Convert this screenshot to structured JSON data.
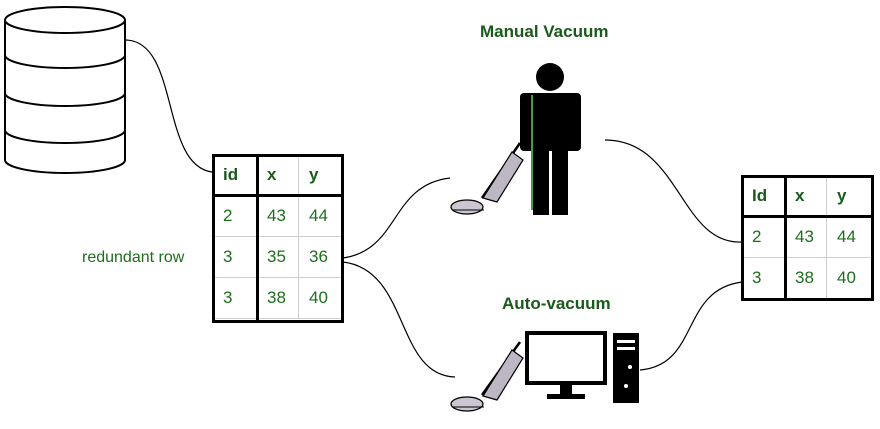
{
  "labels": {
    "manual_title": "Manual Vacuum",
    "auto_title": "Auto-vacuum",
    "redundant_label": "redundant row"
  },
  "input_table": {
    "headers": [
      "id",
      "x",
      "y"
    ],
    "rows": [
      [
        "2",
        "43",
        "44"
      ],
      [
        "3",
        "35",
        "36"
      ],
      [
        "3",
        "38",
        "40"
      ]
    ]
  },
  "output_table": {
    "headers": [
      "Id",
      "x",
      "y"
    ],
    "rows": [
      [
        "2",
        "43",
        "44"
      ],
      [
        "3",
        "38",
        "40"
      ]
    ]
  },
  "colors": {
    "text_green": "#1e6e1e",
    "title_green": "#1a5a1a",
    "line": "#000000",
    "grid": "#cfcfcf"
  },
  "icons": [
    "database-icon",
    "person-icon",
    "vacuum-cleaner-icon",
    "computer-monitor-icon",
    "computer-tower-icon"
  ]
}
